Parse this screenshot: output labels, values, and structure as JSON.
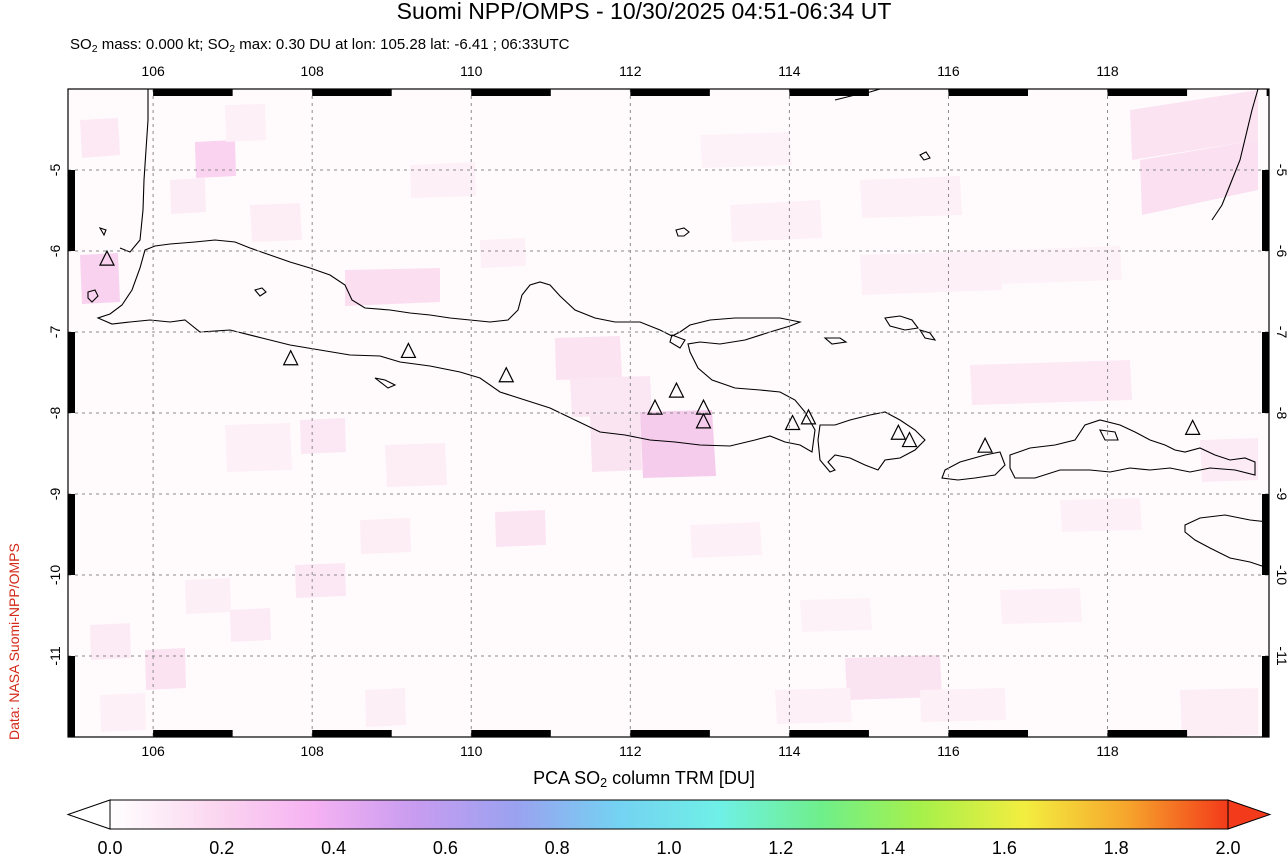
{
  "title": "Suomi NPP/OMPS - 10/30/2025 04:51-06:34 UT",
  "subtitle": {
    "prefix": "SO",
    "sub": "2",
    "mass_text": " mass: 0.000 kt; SO",
    "sub2": "2",
    "max_text": " max: 0.30 DU at lon: 105.28 lat: -6.41 ; 06:33UTC"
  },
  "credit": "Data: NASA Suomi-NPP/OMPS",
  "map": {
    "lon_range": [
      104.93,
      120.03
    ],
    "lat_range": [
      -12.0,
      -4.0
    ],
    "lon_ticks": [
      "106",
      "108",
      "110",
      "112",
      "114",
      "116",
      "118"
    ],
    "lat_ticks": [
      "-5",
      "-6",
      "-7",
      "-8",
      "-9",
      "-10",
      "-11"
    ],
    "grid": true,
    "volcano_marker": "triangle-icon",
    "volcanoes": [
      {
        "lon": 105.42,
        "lat": -6.1
      },
      {
        "lon": 107.73,
        "lat": -7.33
      },
      {
        "lon": 109.21,
        "lat": -7.24
      },
      {
        "lon": 110.44,
        "lat": -7.54
      },
      {
        "lon": 112.31,
        "lat": -7.94
      },
      {
        "lon": 112.58,
        "lat": -7.73
      },
      {
        "lon": 112.92,
        "lat": -7.94
      },
      {
        "lon": 112.92,
        "lat": -8.11
      },
      {
        "lon": 114.04,
        "lat": -8.13
      },
      {
        "lon": 114.24,
        "lat": -8.06
      },
      {
        "lon": 115.37,
        "lat": -8.25
      },
      {
        "lon": 115.51,
        "lat": -8.34
      },
      {
        "lon": 116.46,
        "lat": -8.41
      },
      {
        "lon": 119.07,
        "lat": -8.19
      }
    ]
  },
  "colorbar": {
    "label_prefix": "PCA SO",
    "label_sub": "2",
    "label_suffix": " column TRM [DU]",
    "min": 0.0,
    "max": 2.0,
    "ticks": [
      "0.0",
      "0.2",
      "0.4",
      "0.6",
      "0.8",
      "1.0",
      "1.2",
      "1.4",
      "1.6",
      "1.8",
      "2.0"
    ],
    "colors": [
      "#ffffff",
      "#fbd8f0",
      "#f6b2f2",
      "#c89cf0",
      "#9aa2f0",
      "#74d2f2",
      "#6ff0e6",
      "#6fef8a",
      "#a8f04a",
      "#f3ee40",
      "#f6a62c",
      "#f33a1a"
    ]
  }
}
